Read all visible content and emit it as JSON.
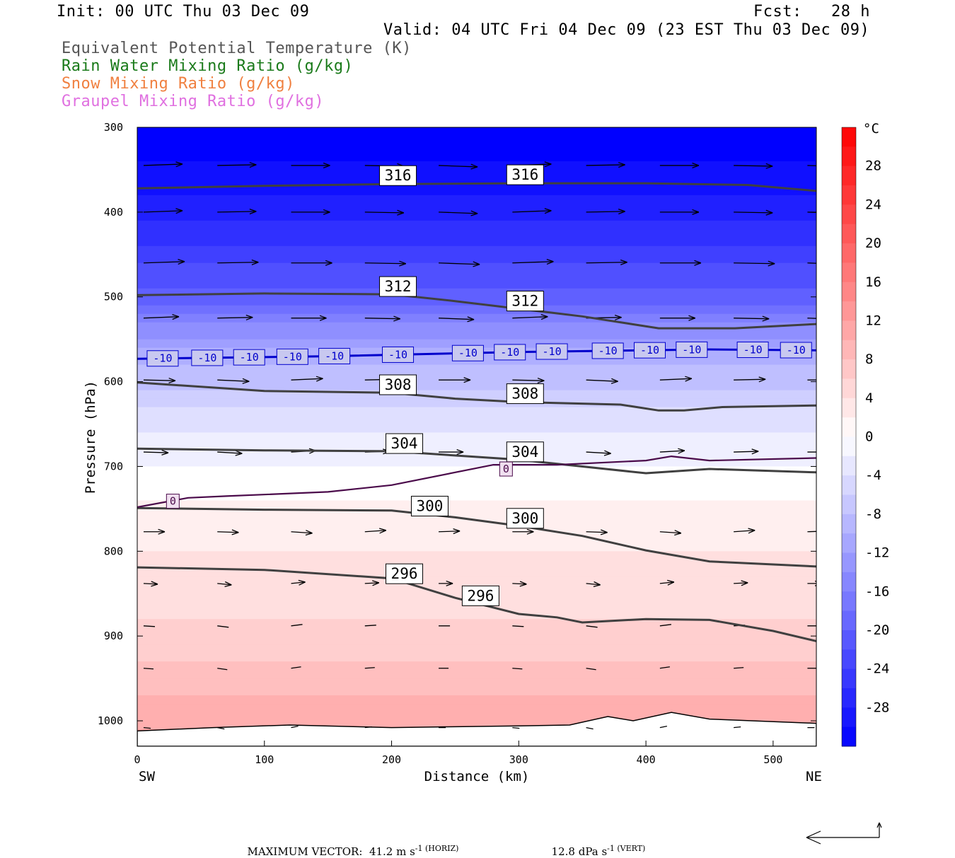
{
  "header": {
    "init": "Init: 00 UTC Thu 03 Dec 09",
    "fcst": "Fcst:   28 h",
    "valid": "Valid: 04 UTC Fri 04 Dec 09 (23 EST Thu 03 Dec 09)",
    "fields": [
      {
        "text": "Equivalent Potential Temperature (K)",
        "color": "#555555"
      },
      {
        "text": "Rain Water Mixing Ratio (g/kg)",
        "color": "#1a7a1a"
      },
      {
        "text": "Snow Mixing Ratio (g/kg)",
        "color": "#f08040"
      },
      {
        "text": "Graupel Mixing Ratio (g/kg)",
        "color": "#e070e0"
      }
    ]
  },
  "chart_data": {
    "type": "cross-section",
    "ylabel": "Pressure (hPa)",
    "xlabel": "Distance (km)",
    "xlim": [
      0,
      534
    ],
    "ylim": [
      300,
      1030
    ],
    "xticks": [
      "0",
      "100",
      "200",
      "300",
      "400",
      "500"
    ],
    "yticks": [
      "300",
      "400",
      "500",
      "600",
      "700",
      "800",
      "900",
      "1000"
    ],
    "left_endpoint": "SW",
    "right_endpoint": "NE",
    "colorbar": {
      "unit": "°C",
      "labels": [
        "28",
        "24",
        "20",
        "16",
        "12",
        "8",
        "4",
        "0",
        "-4",
        "-8",
        "-12",
        "-16",
        "-20",
        "-24",
        "-28"
      ]
    },
    "theta_e_contours": [
      {
        "label": "316",
        "points": [
          [
            0,
            372
          ],
          [
            100,
            369
          ],
          [
            200,
            367
          ],
          [
            300,
            366
          ],
          [
            400,
            366
          ],
          [
            480,
            368
          ],
          [
            534,
            375
          ]
        ]
      },
      {
        "label": "312",
        "points": [
          [
            0,
            498
          ],
          [
            100,
            496
          ],
          [
            200,
            497
          ],
          [
            250,
            505
          ],
          [
            300,
            514
          ],
          [
            350,
            523
          ],
          [
            410,
            537
          ],
          [
            470,
            537
          ],
          [
            534,
            532
          ]
        ]
      },
      {
        "label": "308",
        "points": [
          [
            0,
            601
          ],
          [
            100,
            611
          ],
          [
            200,
            613
          ],
          [
            250,
            620
          ],
          [
            300,
            624
          ],
          [
            380,
            627
          ],
          [
            410,
            634
          ],
          [
            430,
            634
          ],
          [
            460,
            630
          ],
          [
            534,
            628
          ]
        ]
      },
      {
        "label": "304",
        "points": [
          [
            0,
            679
          ],
          [
            100,
            681
          ],
          [
            200,
            682
          ],
          [
            300,
            692
          ],
          [
            350,
            700
          ],
          [
            400,
            708
          ],
          [
            450,
            703
          ],
          [
            534,
            707
          ]
        ]
      },
      {
        "label": "300",
        "points": [
          [
            0,
            749
          ],
          [
            100,
            751
          ],
          [
            200,
            752
          ],
          [
            250,
            760
          ],
          [
            300,
            770
          ],
          [
            350,
            782
          ],
          [
            400,
            799
          ],
          [
            450,
            812
          ],
          [
            534,
            818
          ]
        ]
      },
      {
        "label": "296",
        "points": [
          [
            0,
            819
          ],
          [
            100,
            822
          ],
          [
            200,
            832
          ],
          [
            250,
            855
          ],
          [
            300,
            874
          ],
          [
            330,
            878
          ],
          [
            350,
            884
          ],
          [
            400,
            880
          ],
          [
            450,
            881
          ],
          [
            500,
            894
          ],
          [
            534,
            906
          ]
        ]
      }
    ],
    "temperature_contours": [
      {
        "label": "-10",
        "points": [
          [
            0,
            573
          ],
          [
            150,
            570
          ],
          [
            300,
            565
          ],
          [
            450,
            562
          ],
          [
            534,
            563
          ]
        ]
      },
      {
        "label": "0",
        "points": [
          [
            0,
            748
          ],
          [
            40,
            737
          ],
          [
            70,
            735
          ],
          [
            150,
            730
          ],
          [
            200,
            722
          ],
          [
            280,
            698
          ],
          [
            330,
            698
          ],
          [
            400,
            693
          ],
          [
            420,
            688
          ],
          [
            450,
            693
          ],
          [
            534,
            690
          ]
        ]
      }
    ],
    "temperature_shading_c": [
      {
        "p": 300,
        "t": -33
      },
      {
        "p": 400,
        "t": -28
      },
      {
        "p": 450,
        "t": -24
      },
      {
        "p": 500,
        "t": -20
      },
      {
        "p": 560,
        "t": -11
      },
      {
        "p": 620,
        "t": -6
      },
      {
        "p": 680,
        "t": -2
      },
      {
        "p": 740,
        "t": 1
      },
      {
        "p": 800,
        "t": 3
      },
      {
        "p": 880,
        "t": 5
      },
      {
        "p": 950,
        "t": 8
      },
      {
        "p": 1010,
        "t": 11
      }
    ],
    "wind_vectors_scale": {
      "horizontal": "41.2",
      "vertical": "12.8"
    }
  },
  "footer": {
    "label": "MAXIMUM VECTOR:",
    "horiz_value": "41.2 m s",
    "horiz_tail": "-1 (HORIZ)",
    "vert_value": "12.8 dPa s",
    "vert_tail": "-1 (VERT)"
  }
}
